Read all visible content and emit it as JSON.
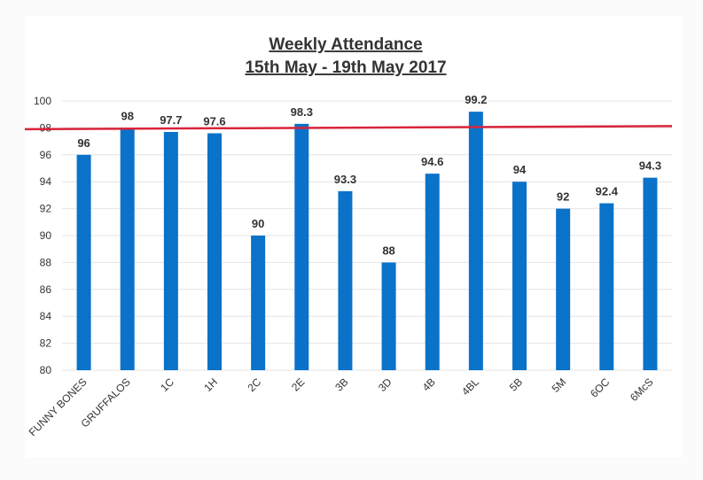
{
  "chart_data": {
    "type": "bar",
    "title_line1": "Weekly Attendance",
    "title_line2": "15th May - 19th May 2017",
    "categories": [
      "FUNNY BONES",
      "GRUFFALOS",
      "1C",
      "1H",
      "2C",
      "2E",
      "3B",
      "3D",
      "4B",
      "4BL",
      "5B",
      "5M",
      "6OC",
      "6McS"
    ],
    "values": [
      96,
      98,
      97.7,
      97.6,
      90,
      98.3,
      93.3,
      88,
      94.6,
      99.2,
      94,
      92,
      92.4,
      94.3
    ],
    "data_labels": [
      "96",
      "98",
      "97.7",
      "97.6",
      "90",
      "98.3",
      "93.3",
      "88",
      "94.6",
      "99.2",
      "94",
      "92",
      "92.4",
      "94.3"
    ],
    "ylim": [
      80,
      100
    ],
    "yticks": [
      80,
      82,
      84,
      86,
      88,
      90,
      92,
      94,
      96,
      98,
      100
    ],
    "target_line": 98,
    "bar_color": "#0a72c9",
    "target_color": "#d9243b",
    "grid": true,
    "legend": "none"
  }
}
